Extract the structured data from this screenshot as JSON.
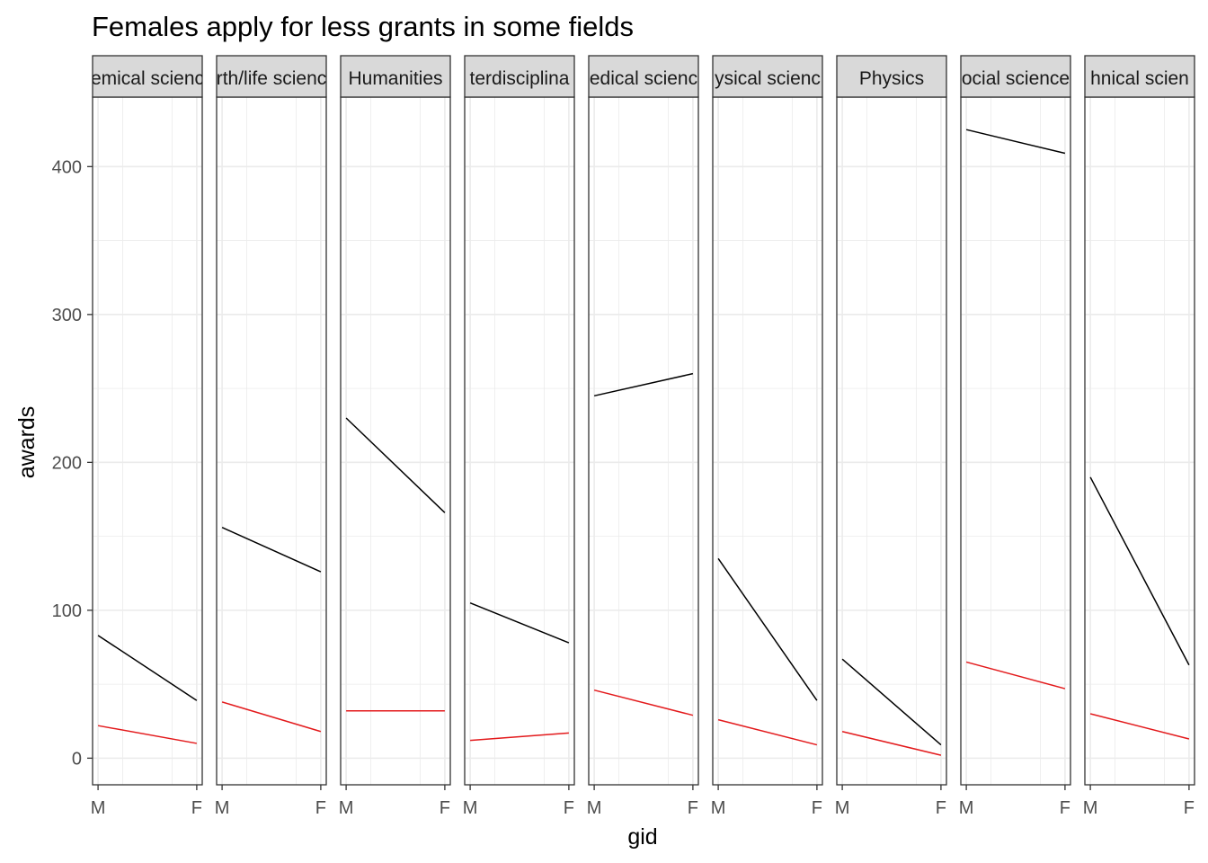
{
  "chart_data": {
    "type": "line",
    "title": "Females apply for less grants in some fields",
    "xlabel": "gid",
    "ylabel": "awards",
    "x_categories": [
      "M",
      "F"
    ],
    "ylim": [
      -18,
      447
    ],
    "y_ticks": [
      0,
      100,
      200,
      300,
      400
    ],
    "grid": true,
    "legend": "none",
    "colors": {
      "upper": "#000000",
      "lower": "#e31a1c",
      "strip_fill": "#d9d9d9",
      "grid": "#ebebeb",
      "panel_border": "#333333"
    },
    "facets": [
      {
        "strip_label": "emical scienc",
        "upper": [
          83,
          39
        ],
        "lower": [
          22,
          10
        ]
      },
      {
        "strip_label": "rth/life scienc",
        "upper": [
          156,
          126
        ],
        "lower": [
          38,
          18
        ]
      },
      {
        "strip_label": "Humanities",
        "upper": [
          230,
          166
        ],
        "lower": [
          32,
          32
        ]
      },
      {
        "strip_label": "terdisciplina",
        "upper": [
          105,
          78
        ],
        "lower": [
          12,
          17
        ]
      },
      {
        "strip_label": "edical scienc",
        "upper": [
          245,
          260
        ],
        "lower": [
          46,
          29
        ]
      },
      {
        "strip_label": "ysical scienc",
        "upper": [
          135,
          39
        ],
        "lower": [
          26,
          9
        ]
      },
      {
        "strip_label": "Physics",
        "upper": [
          67,
          9
        ],
        "lower": [
          18,
          2
        ]
      },
      {
        "strip_label": "ocial science",
        "upper": [
          425,
          409
        ],
        "lower": [
          65,
          47
        ]
      },
      {
        "strip_label": "hnical scien",
        "upper": [
          190,
          63
        ],
        "lower": [
          30,
          13
        ]
      }
    ]
  }
}
